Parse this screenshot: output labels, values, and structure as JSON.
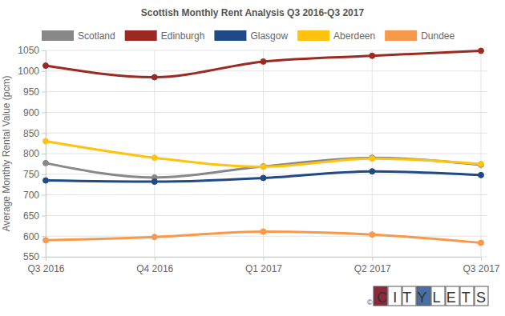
{
  "chart_data": {
    "type": "line",
    "title": "Scottish Monthly Rent Analysis Q3 2016-Q3 2017",
    "y_label": "Average Monthly Rental Value (pcm)",
    "categories": [
      "Q3 2016",
      "Q4 2016",
      "Q1 2017",
      "Q2 2017",
      "Q3 2017"
    ],
    "series": [
      {
        "name": "Scotland",
        "color": "#888888",
        "values": [
          777,
          742,
          769,
          790,
          773
        ]
      },
      {
        "name": "Edinburgh",
        "color": "#9b2a22",
        "values": [
          1013,
          985,
          1023,
          1037,
          1049
        ]
      },
      {
        "name": "Glasgow",
        "color": "#1f4a86",
        "values": [
          735,
          732,
          741,
          757,
          748
        ]
      },
      {
        "name": "Aberdeen",
        "color": "#fdc30f",
        "values": [
          830,
          790,
          768,
          788,
          775
        ]
      },
      {
        "name": "Dundee",
        "color": "#f7994a",
        "values": [
          590,
          598,
          611,
          604,
          584
        ]
      }
    ],
    "ylim": [
      550,
      1050
    ],
    "yticks": [
      550,
      600,
      650,
      700,
      750,
      800,
      850,
      900,
      950,
      1000,
      1050
    ],
    "grid": true,
    "legend": "top",
    "marker": "circle",
    "line_style": "solid",
    "annotations": [
      "©",
      "CITYLETS"
    ]
  }
}
